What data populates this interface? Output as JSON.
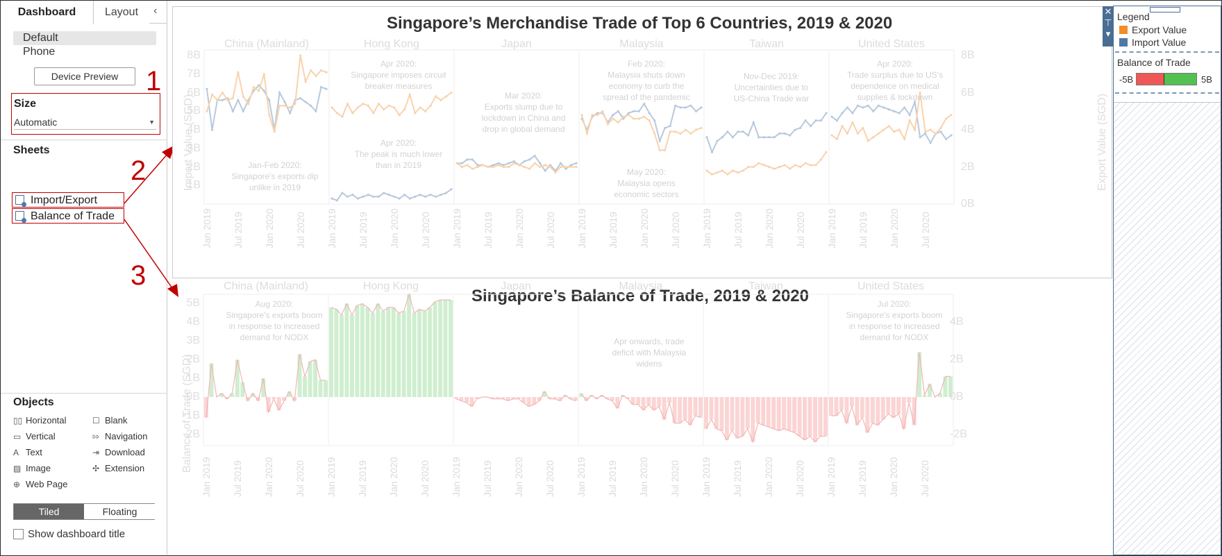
{
  "sidebar": {
    "tabs": [
      {
        "label": "Dashboard"
      },
      {
        "label": "Layout"
      }
    ],
    "collapse_glyph": "‹",
    "device_items": [
      {
        "label": "Default"
      },
      {
        "label": "Phone"
      }
    ],
    "device_preview_label": "Device Preview",
    "size": {
      "title": "Size",
      "value": "Automatic"
    },
    "sheets": {
      "title": "Sheets",
      "items": [
        {
          "label": "Import/Export"
        },
        {
          "label": "Balance of Trade"
        }
      ]
    },
    "objects": {
      "title": "Objects",
      "items": [
        {
          "label": "Horizontal",
          "icon": "horizontal-container-icon",
          "glyph": "▯▯"
        },
        {
          "label": "Blank",
          "icon": "blank-icon",
          "glyph": "☐"
        },
        {
          "label": "Vertical",
          "icon": "vertical-container-icon",
          "glyph": "▭"
        },
        {
          "label": "Navigation",
          "icon": "navigation-icon",
          "glyph": "⇰"
        },
        {
          "label": "Text",
          "icon": "text-icon",
          "glyph": "A"
        },
        {
          "label": "Download",
          "icon": "download-icon",
          "glyph": "⇥"
        },
        {
          "label": "Image",
          "icon": "image-icon",
          "glyph": "▨"
        },
        {
          "label": "Extension",
          "icon": "extension-icon",
          "glyph": "✣"
        },
        {
          "label": "Web Page",
          "icon": "web-page-icon",
          "glyph": "⊕"
        }
      ]
    },
    "mode": {
      "tiled": "Tiled",
      "floating": "Floating"
    },
    "show_title_label": "Show dashboard title"
  },
  "annotations": {
    "n1": "1",
    "n2": "2",
    "n3": "3"
  },
  "top_chart": {
    "title": "Singapore’s Merchandise Trade of Top 6 Countries, 2019 & 2020",
    "left_axis_title": "Import Value (SGD)",
    "right_axis_title": "Export Value (SGD)",
    "left_ticks": [
      "8B",
      "7B",
      "6B",
      "5B",
      "4B",
      "3B",
      "2B",
      "1B"
    ],
    "right_ticks": [
      "8B",
      "6B",
      "4B",
      "2B",
      "0B"
    ],
    "date_ticks": [
      "Jan 2019",
      "Jul 2019",
      "Jan 2020",
      "Jul 2020"
    ],
    "countries": [
      "China (Mainland)",
      "Hong Kong",
      "Japan",
      "Malaysia",
      "Taiwan",
      "United States"
    ],
    "notes": [
      "Jan-Feb 2020:\nSingapore's exports dip\nunlike in 2019",
      "Apr 2020:\nSingapore imposes circuit\nbreaker measures",
      "Apr 2020:\nThe peak is much lower\nthan in 2019",
      "Mar 2020:\nExports slump due to\nlockdown in China and\ndrop in global demand",
      "Feb 2020:\nMalaysia shuts down\neconomy to curb the\nspread of the pandemic",
      "May 2020:\nMalaysia opens\neconomic sectors",
      "Nov-Dec 2019:\nUncertainties due to\nUS-China Trade war",
      "Apr 2020:\nTrade surplus due to US's\ndependence  on  medical\nsupplies & lockdown"
    ]
  },
  "bottom_chart": {
    "title": "Singapore’s Balance of Trade, 2019 & 2020",
    "left_axis_title": "Balance of Trade (SGD)",
    "left_ticks": [
      "5B",
      "4B",
      "3B",
      "2B",
      "1B",
      "0B",
      "-1B",
      "-2B"
    ],
    "right_ticks": [
      "4B",
      "2B",
      "0B",
      "-2B"
    ],
    "date_ticks": [
      "Jan 2019",
      "Jul 2019",
      "Jan 2020",
      "Jul 2020"
    ],
    "countries": [
      "China (Mainland)",
      "Hong Kong",
      "Japan",
      "Malaysia",
      "Taiwan",
      "United States"
    ],
    "notes": [
      "Aug 2020:\nSingapore's exports boom\nin response to increased\ndemand for NODX",
      "Apr  onwards, trade\ndeficit with Malaysia\nwidens",
      "Jul 2020:\nSingapore's exports boom\nin response to increased\ndemand for NODX"
    ]
  },
  "legend": {
    "title": "Legend",
    "items": [
      {
        "label": "Export Value",
        "color": "#f28e2b"
      },
      {
        "label": "Import Value",
        "color": "#4e79a7"
      }
    ],
    "bot_title": "Balance of Trade",
    "bot_min": "-5B",
    "bot_max": "5B",
    "neg_color": "#f05757",
    "pos_color": "#52c152"
  },
  "chart_data": [
    {
      "type": "line",
      "title": "Singapore’s Merchandise Trade of Top 6 Countries, 2019 & 2020",
      "ylabel": "Import Value (SGD)",
      "y2label": "Export Value (SGD)",
      "ylim": [
        0,
        8.3
      ],
      "y2lim": [
        0,
        8.3
      ],
      "x": [
        "Jan 2019",
        "Feb 2019",
        "Mar 2019",
        "Apr 2019",
        "May 2019",
        "Jun 2019",
        "Jul 2019",
        "Aug 2019",
        "Sep 2019",
        "Oct 2019",
        "Nov 2019",
        "Dec 2019",
        "Jan 2020",
        "Feb 2020",
        "Mar 2020",
        "Apr 2020",
        "May 2020",
        "Jun 2020",
        "Jul 2020",
        "Aug 2020",
        "Sep 2020",
        "Oct 2020",
        "Nov 2020",
        "Dec 2020"
      ],
      "panels": [
        {
          "name": "China (Mainland)",
          "series": [
            {
              "name": "Import Value",
              "values": [
                6.2,
                4.0,
                5.6,
                5.6,
                5.7,
                5.0,
                5.6,
                5.0,
                5.6,
                6.1,
                6.4,
                6.1,
                5.6,
                4.0,
                6.0,
                5.5,
                4.9,
                5.6,
                5.7,
                5.5,
                5.3,
                5.0,
                6.3,
                6.2
              ]
            },
            {
              "name": "Export Value",
              "values": [
                5.0,
                5.9,
                5.6,
                6.0,
                5.6,
                5.7,
                7.1,
                5.8,
                5.4,
                6.3,
                6.1,
                7.0,
                4.8,
                3.9,
                5.3,
                5.3,
                5.2,
                5.4,
                8.0,
                6.6,
                7.2,
                6.9,
                7.2,
                7.1
              ]
            }
          ]
        },
        {
          "name": "Hong Kong",
          "series": [
            {
              "name": "Import Value",
              "values": [
                0.3,
                0.2,
                0.6,
                0.4,
                0.5,
                0.3,
                0.4,
                0.5,
                0.4,
                0.4,
                0.6,
                0.5,
                0.4,
                0.3,
                0.5,
                0.3,
                0.4,
                0.5,
                0.4,
                0.5,
                0.4,
                0.5,
                0.6,
                0.8
              ]
            },
            {
              "name": "Export Value",
              "values": [
                5.2,
                4.9,
                4.7,
                5.4,
                4.9,
                5.2,
                5.4,
                5.3,
                4.9,
                5.4,
                5.1,
                5.3,
                5.2,
                4.8,
                5.1,
                5.9,
                4.9,
                5.2,
                5.0,
                5.3,
                5.8,
                5.6,
                5.8,
                6.0
              ]
            }
          ]
        },
        {
          "name": "Japan",
          "series": [
            {
              "name": "Import Value",
              "values": [
                2.2,
                2.2,
                2.4,
                2.4,
                2.1,
                2.1,
                2.0,
                2.1,
                2.2,
                2.1,
                2.2,
                2.3,
                2.1,
                2.3,
                2.4,
                2.6,
                2.2,
                1.8,
                2.1,
                1.8,
                2.2,
                1.9,
                2.1,
                2.2
              ]
            },
            {
              "name": "Export Value",
              "values": [
                2.2,
                2.0,
                2.1,
                1.9,
                2.0,
                2.1,
                2.0,
                2.0,
                2.1,
                2.0,
                2.0,
                2.2,
                2.1,
                2.0,
                1.9,
                2.2,
                2.0,
                2.1,
                2.0,
                1.7,
                2.0,
                2.0,
                2.0,
                2.0
              ]
            }
          ]
        },
        {
          "name": "Malaysia",
          "series": [
            {
              "name": "Import Value",
              "values": [
                4.6,
                4.0,
                4.7,
                4.9,
                4.9,
                4.4,
                4.8,
                5.0,
                4.6,
                4.9,
                5.0,
                5.0,
                5.4,
                4.9,
                4.5,
                3.4,
                4.1,
                4.2,
                5.3,
                5.2,
                5.2,
                5.3,
                5.0,
                5.2
              ]
            },
            {
              "name": "Export Value",
              "values": [
                4.8,
                3.8,
                4.8,
                4.8,
                5.0,
                4.3,
                4.6,
                4.4,
                4.7,
                4.8,
                4.6,
                4.6,
                4.7,
                4.5,
                3.8,
                2.9,
                2.9,
                3.9,
                3.9,
                3.8,
                4.0,
                3.8,
                4.0,
                4.1
              ]
            }
          ]
        },
        {
          "name": "Taiwan",
          "series": [
            {
              "name": "Import Value",
              "values": [
                3.6,
                2.8,
                3.4,
                3.6,
                3.9,
                3.6,
                3.9,
                3.9,
                3.7,
                4.4,
                3.6,
                3.6,
                3.6,
                3.6,
                3.8,
                3.8,
                3.7,
                4.0,
                4.1,
                4.5,
                4.2,
                4.5,
                4.5,
                4.9
              ]
            },
            {
              "name": "Export Value",
              "values": [
                1.8,
                1.6,
                1.7,
                1.8,
                1.6,
                1.8,
                1.7,
                1.8,
                2.0,
                2.0,
                2.2,
                2.1,
                2.0,
                1.9,
                2.0,
                2.1,
                1.9,
                2.1,
                2.0,
                2.2,
                2.1,
                2.1,
                2.4,
                2.8
              ]
            }
          ]
        },
        {
          "name": "United States",
          "series": [
            {
              "name": "Import Value",
              "values": [
                4.7,
                4.5,
                4.9,
                5.2,
                4.9,
                5.3,
                5.2,
                5.3,
                5.0,
                5.3,
                5.2,
                5.1,
                5.0,
                4.9,
                5.2,
                4.8,
                5.5,
                3.6,
                3.8,
                3.3,
                3.8,
                3.9,
                3.5,
                3.7
              ]
            },
            {
              "name": "Export Value",
              "values": [
                3.7,
                3.5,
                4.2,
                3.8,
                4.4,
                3.8,
                4.1,
                3.4,
                3.6,
                3.8,
                4.0,
                4.2,
                3.9,
                4.0,
                3.5,
                4.5,
                4.0,
                6.0,
                3.9,
                4.0,
                3.8,
                4.1,
                4.6,
                4.8
              ]
            }
          ]
        }
      ]
    },
    {
      "type": "bar",
      "title": "Singapore’s Balance of Trade, 2019 & 2020",
      "ylabel": "Balance of Trade (SGD)",
      "ylim": [
        -2.6,
        5.5
      ],
      "y2lim": [
        -2.6,
        5.5
      ],
      "x": [
        "Jan 2019",
        "Feb 2019",
        "Mar 2019",
        "Apr 2019",
        "May 2019",
        "Jun 2019",
        "Jul 2019",
        "Aug 2019",
        "Sep 2019",
        "Oct 2019",
        "Nov 2019",
        "Dec 2019",
        "Jan 2020",
        "Feb 2020",
        "Mar 2020",
        "Apr 2020",
        "May 2020",
        "Jun 2020",
        "Jul 2020",
        "Aug 2020",
        "Sep 2020",
        "Oct 2020",
        "Nov 2020",
        "Dec 2020"
      ],
      "panels": [
        {
          "name": "China (Mainland)",
          "values": [
            -1.1,
            1.8,
            0.0,
            0.2,
            -0.1,
            0.2,
            2.0,
            0.8,
            -0.2,
            0.2,
            -0.2,
            1.0,
            -0.8,
            -0.1,
            -0.7,
            -0.2,
            0.3,
            -0.2,
            2.3,
            1.1,
            1.9,
            2.0,
            0.9,
            0.9
          ]
        },
        {
          "name": "Hong Kong",
          "values": [
            4.8,
            4.7,
            4.4,
            5.0,
            4.4,
            4.9,
            5.0,
            4.8,
            4.5,
            5.0,
            4.6,
            4.8,
            4.8,
            4.5,
            4.6,
            5.5,
            4.5,
            4.7,
            4.6,
            4.8,
            5.1,
            5.2,
            5.2,
            5.2
          ]
        },
        {
          "name": "Japan",
          "values": [
            -0.1,
            -0.2,
            -0.3,
            -0.5,
            -0.1,
            0.0,
            0.0,
            -0.1,
            -0.1,
            -0.1,
            -0.2,
            -0.1,
            -0.1,
            -0.3,
            -0.5,
            -0.4,
            -0.2,
            0.3,
            -0.1,
            -0.1,
            -0.2,
            0.1,
            -0.1,
            -0.2
          ]
        },
        {
          "name": "Malaysia",
          "values": [
            0.2,
            -0.2,
            0.1,
            -0.1,
            0.1,
            -0.1,
            -0.2,
            -0.6,
            0.1,
            -0.1,
            -0.4,
            -0.4,
            -0.7,
            -0.4,
            -0.7,
            -0.5,
            -1.2,
            -0.3,
            -1.4,
            -1.4,
            -1.2,
            -1.5,
            -1.0,
            -1.1
          ]
        },
        {
          "name": "Taiwan",
          "values": [
            -1.7,
            -1.2,
            -1.7,
            -1.8,
            -2.3,
            -1.8,
            -2.2,
            -2.1,
            -1.7,
            -2.4,
            -1.4,
            -1.5,
            -1.6,
            -1.7,
            -1.8,
            -1.7,
            -1.8,
            -1.9,
            -2.1,
            -2.3,
            -2.1,
            -2.4,
            -2.1,
            -2.1
          ]
        },
        {
          "name": "United States",
          "values": [
            -1.0,
            -1.0,
            -0.7,
            -1.4,
            -0.5,
            -1.5,
            -1.1,
            -1.9,
            -1.4,
            -1.5,
            -1.2,
            -0.9,
            -1.1,
            -0.9,
            -1.7,
            -0.3,
            -1.5,
            2.4,
            0.1,
            0.7,
            0.0,
            0.2,
            1.1,
            1.1
          ]
        }
      ]
    }
  ]
}
